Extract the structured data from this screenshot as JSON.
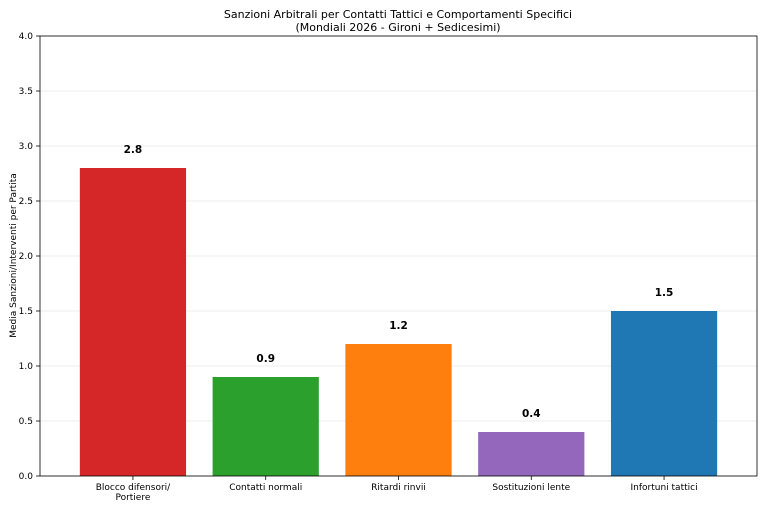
{
  "chart_data": {
    "type": "bar",
    "title": "Sanzioni Arbitrali per Contatti Tattici e Comportamenti Specifici",
    "subtitle": "(Mondiali 2026 - Gironi + Sedicesimi)",
    "xlabel": "",
    "ylabel": "Media Sanzioni/Interventi per Partita",
    "ylim": [
      0,
      4.0
    ],
    "yticks": [
      "0.0",
      "0.5",
      "1.0",
      "1.5",
      "2.0",
      "2.5",
      "3.0",
      "3.5",
      "4.0"
    ],
    "grid": "horizontal",
    "categories": [
      [
        "Blocco difensori/",
        "Portiere"
      ],
      [
        "Contatti normali"
      ],
      [
        "Ritardi rinvii"
      ],
      [
        "Sostituzioni lente"
      ],
      [
        "Infortuni tattici"
      ]
    ],
    "values": [
      2.8,
      0.9,
      1.2,
      0.4,
      1.5
    ],
    "value_labels": [
      "2.8",
      "0.9",
      "1.2",
      "0.4",
      "1.5"
    ],
    "colors": [
      "#d62728",
      "#2ca02c",
      "#ff7f0e",
      "#9467bd",
      "#1f77b4"
    ]
  }
}
